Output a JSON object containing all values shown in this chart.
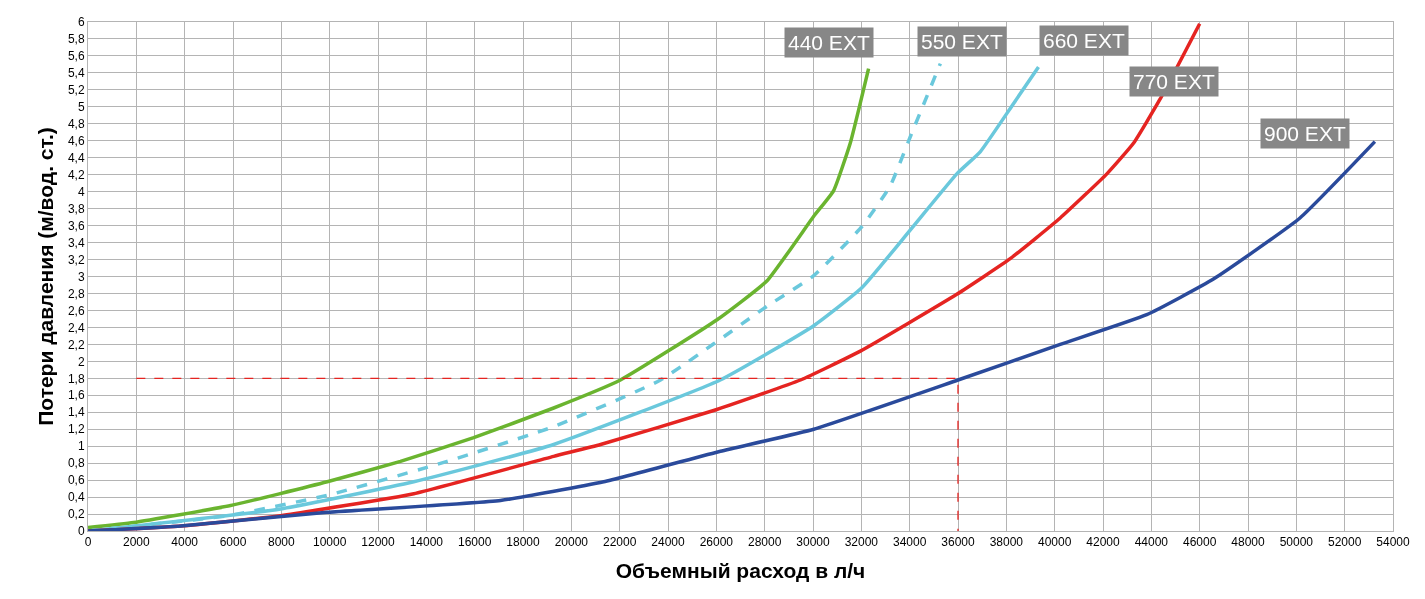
{
  "chart_data": {
    "type": "line",
    "xlabel": "Объемный расход в л/ч",
    "ylabel": "Потери давления (м/вод. ст.)",
    "xlim": [
      0,
      54000
    ],
    "ylim": [
      0,
      6
    ],
    "xticks": [
      0,
      2000,
      4000,
      6000,
      8000,
      10000,
      12000,
      14000,
      16000,
      18000,
      20000,
      22000,
      24000,
      26000,
      28000,
      30000,
      32000,
      34000,
      36000,
      38000,
      40000,
      42000,
      44000,
      46000,
      48000,
      50000,
      52000,
      54000
    ],
    "yticks": [
      0,
      {
        "value": 0.2,
        "label": "0,2"
      },
      {
        "value": 0.4,
        "label": "0,4"
      },
      {
        "value": 0.6,
        "label": "0,6"
      },
      {
        "value": 0.8,
        "label": "0,8"
      },
      1,
      {
        "value": 1.2,
        "label": "1,2"
      },
      {
        "value": 1.4,
        "label": "1,4"
      },
      {
        "value": 1.6,
        "label": "1,6"
      },
      {
        "value": 1.8,
        "label": "1,8"
      },
      2,
      {
        "value": 2.2,
        "label": "2,2"
      },
      {
        "value": 2.4,
        "label": "2,4"
      },
      {
        "value": 2.6,
        "label": "2,6"
      },
      {
        "value": 2.8,
        "label": "2,8"
      },
      3,
      {
        "value": 3.2,
        "label": "3,2"
      },
      {
        "value": 3.4,
        "label": "3,4"
      },
      {
        "value": 3.6,
        "label": "3,6"
      },
      {
        "value": 3.8,
        "label": "3,8"
      },
      4,
      {
        "value": 4.2,
        "label": "4,2"
      },
      {
        "value": 4.4,
        "label": "4,4"
      },
      {
        "value": 4.6,
        "label": "4,6"
      },
      {
        "value": 4.8,
        "label": "4,8"
      },
      5,
      {
        "value": 5.2,
        "label": "5,2"
      },
      {
        "value": 5.4,
        "label": "5,4"
      },
      {
        "value": 5.6,
        "label": "5,6"
      },
      {
        "value": 5.8,
        "label": "5,8"
      },
      6
    ],
    "grid": true,
    "legend": false,
    "marker": "none",
    "series": [
      {
        "name": "440 EXT",
        "color": "#6ab42f",
        "line_style": "solid",
        "x": [
          0,
          1890,
          5900,
          9900,
          12930,
          15960,
          19270,
          22030,
          26030,
          28100,
          30030,
          30850,
          31540,
          32300
        ],
        "values": [
          0.04,
          0.1,
          0.3,
          0.58,
          0.82,
          1.1,
          1.45,
          1.78,
          2.49,
          2.95,
          3.71,
          4.01,
          4.57,
          5.45
        ]
      },
      {
        "name": "550 EXT",
        "color": "#6ac8dc",
        "line_style": "dashed",
        "x": [
          0,
          5770,
          9900,
          14860,
          19270,
          23690,
          28100,
          30030,
          32030,
          33200,
          34030,
          35270
        ],
        "values": [
          0,
          0.18,
          0.42,
          0.82,
          1.23,
          1.78,
          2.65,
          3.01,
          3.59,
          4.07,
          4.65,
          5.51
        ]
      },
      {
        "name": "660 EXT",
        "color": "#6ac8dc",
        "line_style": "solid",
        "x": [
          0,
          7970,
          13480,
          19270,
          26160,
          30030,
          32030,
          34030,
          35950,
          36920,
          38230,
          39330
        ],
        "values": [
          0,
          0.26,
          0.58,
          1.02,
          1.78,
          2.42,
          2.87,
          3.55,
          4.21,
          4.47,
          5.01,
          5.47
        ]
      },
      {
        "name": "770 EXT",
        "color": "#e52421",
        "line_style": "solid",
        "x": [
          0,
          3840,
          7970,
          13480,
          19270,
          21210,
          25890,
          29480,
          31960,
          35950,
          38160,
          40230,
          42160,
          43260,
          44360,
          46000
        ],
        "values": [
          0,
          0.06,
          0.18,
          0.44,
          0.88,
          1.02,
          1.42,
          1.78,
          2.12,
          2.79,
          3.21,
          3.69,
          4.21,
          4.57,
          5.09,
          5.98
        ]
      },
      {
        "name": "900 EXT",
        "color": "#2a4a9b",
        "line_style": "solid",
        "x": [
          0,
          3840,
          9900,
          17070,
          21340,
          26170,
          30030,
          36000,
          40230,
          43810,
          46570,
          50150,
          53250
        ],
        "values": [
          0,
          0.06,
          0.22,
          0.36,
          0.58,
          0.94,
          1.2,
          1.78,
          2.2,
          2.55,
          2.97,
          3.69,
          4.59
        ]
      },
      {
        "color": "#e52421",
        "line_style": "dashed",
        "x": [
          2000,
          36000,
          36000
        ],
        "values": [
          1.8,
          1.8,
          0
        ]
      }
    ]
  }
}
